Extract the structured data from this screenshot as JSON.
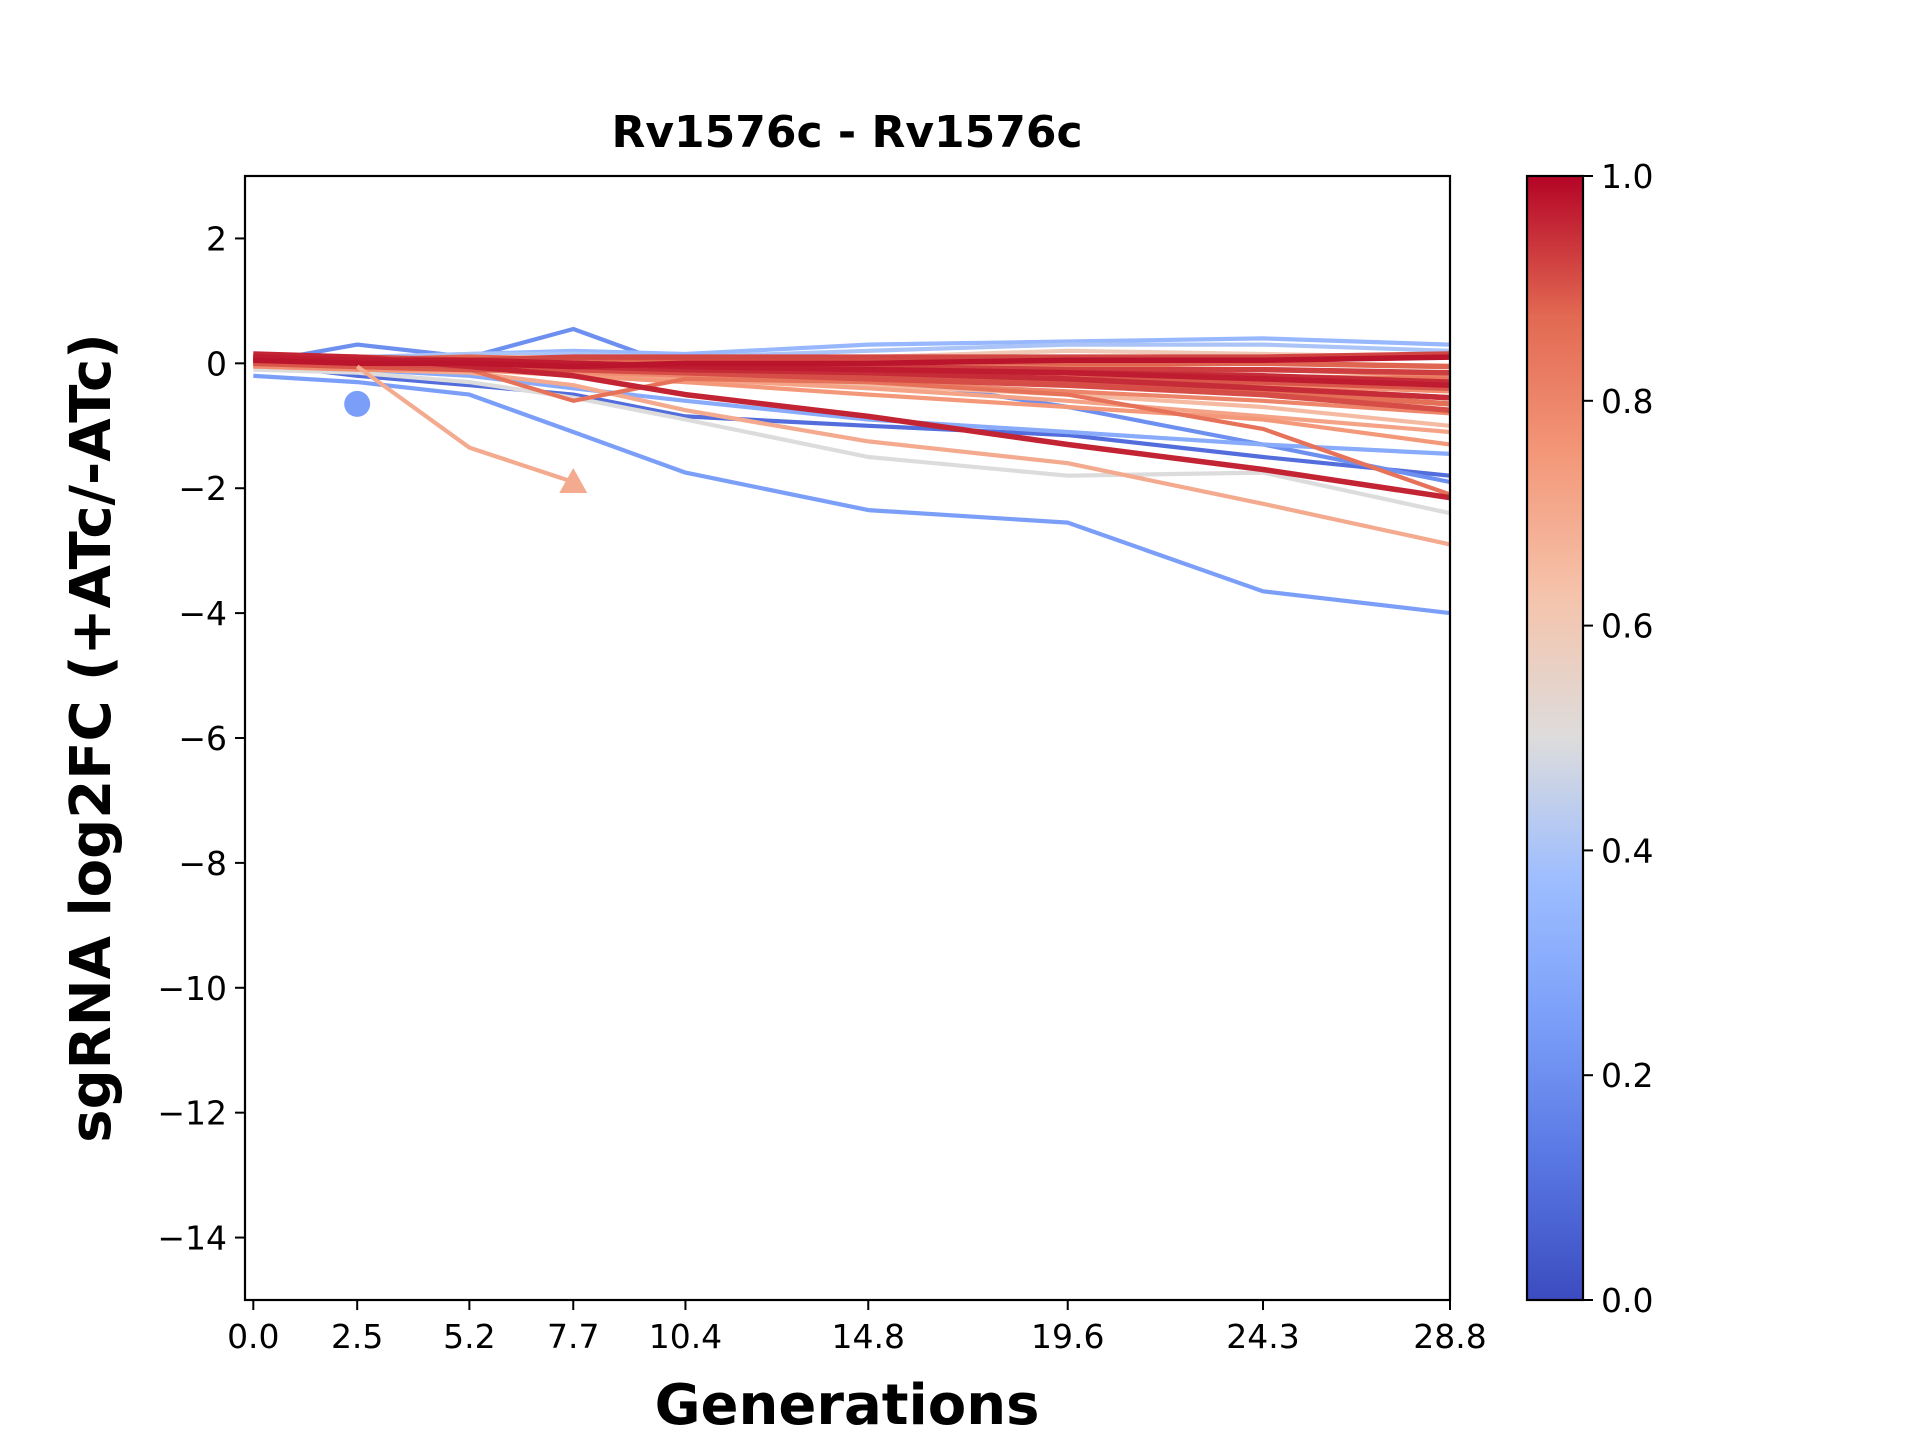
{
  "chart_data": {
    "type": "line",
    "title": "Rv1576c - Rv1576c",
    "xlabel": "Generations",
    "ylabel": "sgRNA log2FC (+ATc/-ATc)",
    "x_ticks": [
      "0.0",
      "2.5",
      "5.2",
      "7.7",
      "10.4",
      "14.8",
      "19.6",
      "24.3",
      "28.8"
    ],
    "x_tick_values": [
      0.0,
      2.5,
      5.2,
      7.7,
      10.4,
      14.8,
      19.6,
      24.3,
      28.8
    ],
    "xlim": [
      -0.2,
      28.8
    ],
    "y_ticks": [
      "2",
      "0",
      "−2",
      "−4",
      "−6",
      "−8",
      "−10",
      "−12",
      "−14"
    ],
    "y_tick_values": [
      2,
      0,
      -2,
      -4,
      -6,
      -8,
      -10,
      -12,
      -14
    ],
    "ylim": [
      -15,
      3
    ],
    "grid": false,
    "colorbar": {
      "colormap": "coolwarm",
      "range": [
        0.0,
        1.0
      ],
      "ticks": [
        "0.0",
        "0.2",
        "0.4",
        "0.6",
        "0.8",
        "1.0"
      ],
      "tick_values": [
        0.0,
        0.2,
        0.4,
        0.6,
        0.8,
        1.0
      ]
    },
    "x": [
      0.0,
      2.5,
      5.2,
      7.7,
      10.4,
      14.8,
      19.6,
      24.3,
      28.8
    ],
    "series": [
      {
        "color_value": 0.25,
        "values": [
          -0.2,
          -0.3,
          -0.5,
          -1.1,
          -1.75,
          -2.35,
          -2.55,
          -3.65,
          -4.0
        ]
      },
      {
        "color_value": 0.7,
        "values": [
          -0.05,
          -0.1,
          -0.15,
          -0.35,
          -0.75,
          -1.25,
          -1.6,
          -2.25,
          -2.9
        ]
      },
      {
        "color_value": 0.5,
        "values": [
          -0.1,
          -0.15,
          -0.3,
          -0.55,
          -0.9,
          -1.5,
          -1.8,
          -1.75,
          -2.4
        ]
      },
      {
        "color_value": 0.96,
        "values": [
          0.15,
          0.1,
          -0.05,
          -0.2,
          -0.5,
          -0.85,
          -1.3,
          -1.7,
          -2.15
        ]
      },
      {
        "color_value": 0.85,
        "values": [
          0.05,
          0.0,
          -0.1,
          -0.6,
          -0.25,
          -0.3,
          -0.5,
          -1.05,
          -2.1
        ]
      },
      {
        "color_value": 0.1,
        "values": [
          0.0,
          -0.2,
          -0.35,
          -0.5,
          -0.85,
          -1.0,
          -1.15,
          -1.5,
          -1.8
        ]
      },
      {
        "color_value": 0.2,
        "values": [
          0.0,
          0.3,
          0.1,
          0.55,
          -0.1,
          -0.2,
          -0.7,
          -1.3,
          -1.9
        ]
      },
      {
        "color_value": 0.3,
        "values": [
          0.0,
          -0.1,
          -0.2,
          -0.4,
          -0.6,
          -0.9,
          -1.1,
          -1.3,
          -1.45
        ]
      },
      {
        "color_value": 0.75,
        "values": [
          0.0,
          -0.05,
          -0.1,
          -0.2,
          -0.3,
          -0.5,
          -0.7,
          -0.9,
          -1.3
        ]
      },
      {
        "color_value": 0.65,
        "values": [
          0.0,
          -0.05,
          -0.1,
          -0.15,
          -0.25,
          -0.35,
          -0.5,
          -0.7,
          -1.0
        ]
      },
      {
        "color_value": 0.8,
        "values": [
          0.05,
          0.0,
          -0.05,
          -0.1,
          -0.2,
          -0.3,
          -0.45,
          -0.6,
          -0.8
        ]
      },
      {
        "color_value": 0.9,
        "values": [
          0.1,
          0.05,
          0.0,
          -0.05,
          -0.1,
          -0.2,
          -0.3,
          -0.4,
          -0.55
        ]
      },
      {
        "color_value": 0.95,
        "values": [
          0.05,
          0.05,
          0.0,
          0.0,
          -0.05,
          -0.1,
          -0.15,
          -0.2,
          -0.3
        ]
      },
      {
        "color_value": 0.88,
        "values": [
          0.0,
          0.05,
          0.1,
          0.05,
          0.05,
          0.05,
          0.0,
          0.0,
          -0.05
        ]
      },
      {
        "color_value": 0.92,
        "values": [
          0.1,
          0.1,
          0.05,
          0.1,
          0.1,
          0.1,
          0.1,
          0.1,
          0.15
        ]
      },
      {
        "color_value": 0.35,
        "values": [
          0.0,
          0.1,
          0.15,
          0.2,
          0.15,
          0.3,
          0.35,
          0.4,
          0.3
        ]
      },
      {
        "color_value": 0.4,
        "values": [
          0.05,
          0.1,
          0.15,
          0.15,
          0.1,
          0.2,
          0.3,
          0.3,
          0.2
        ]
      },
      {
        "color_value": 0.6,
        "values": [
          0.0,
          0.05,
          0.1,
          0.1,
          0.05,
          0.1,
          0.2,
          0.15,
          0.1
        ]
      },
      {
        "color_value": 0.78,
        "values": [
          -0.05,
          -0.1,
          -0.1,
          -0.15,
          -0.2,
          -0.25,
          -0.3,
          -0.35,
          -0.45
        ]
      },
      {
        "color_value": 0.83,
        "values": [
          0.0,
          -0.05,
          -0.05,
          -0.1,
          -0.15,
          -0.15,
          -0.2,
          -0.25,
          -0.3
        ]
      },
      {
        "color_value": 0.97,
        "values": [
          0.1,
          0.05,
          0.05,
          0.0,
          -0.05,
          -0.1,
          -0.15,
          -0.25,
          -0.35
        ]
      },
      {
        "color_value": 0.86,
        "values": [
          0.05,
          0.0,
          0.0,
          -0.05,
          -0.1,
          -0.2,
          -0.3,
          -0.45,
          -0.65
        ]
      },
      {
        "color_value": 0.72,
        "values": [
          0.0,
          -0.05,
          -0.1,
          -0.15,
          -0.25,
          -0.4,
          -0.6,
          -0.85,
          -1.1
        ]
      },
      {
        "color_value": 0.93,
        "values": [
          0.05,
          0.05,
          0.0,
          0.0,
          -0.05,
          -0.05,
          -0.1,
          -0.1,
          -0.15
        ]
      },
      {
        "color_value": 0.98,
        "values": [
          0.05,
          0.0,
          0.0,
          -0.05,
          0.0,
          0.0,
          0.05,
          0.05,
          0.1
        ]
      },
      {
        "color_value": 0.8,
        "values": [
          0.0,
          0.0,
          0.05,
          0.0,
          0.0,
          -0.05,
          -0.05,
          -0.1,
          -0.2
        ]
      },
      {
        "color_value": 0.9,
        "values": [
          0.0,
          -0.05,
          -0.1,
          -0.1,
          -0.15,
          -0.2,
          -0.25,
          -0.3,
          -0.4
        ]
      },
      {
        "color_value": 0.84,
        "values": [
          0.05,
          0.05,
          0.0,
          -0.05,
          -0.1,
          -0.1,
          -0.15,
          -0.2,
          -0.25
        ]
      },
      {
        "color_value": 0.95,
        "values": [
          0.1,
          0.05,
          0.0,
          -0.05,
          -0.1,
          -0.15,
          -0.25,
          -0.4,
          -0.55
        ]
      },
      {
        "color_value": 0.91,
        "values": [
          0.05,
          0.0,
          -0.05,
          -0.1,
          -0.15,
          -0.25,
          -0.35,
          -0.5,
          -0.75
        ]
      }
    ],
    "markers": [
      {
        "shape": "circle",
        "x": 2.5,
        "y": -0.65,
        "color_value": 0.25
      },
      {
        "shape": "triangle",
        "x": 7.7,
        "y": -1.9,
        "color_value": 0.7
      },
      {
        "shape": "segment",
        "from_x": 2.5,
        "from_y": -0.05,
        "x": 5.2,
        "y": -1.35,
        "to_x": 7.7,
        "to_y": -1.9,
        "color_value": 0.7
      }
    ]
  }
}
